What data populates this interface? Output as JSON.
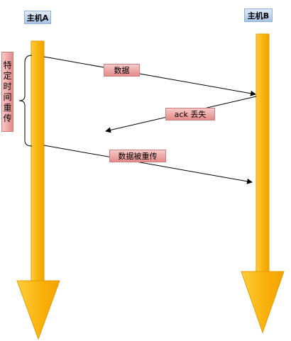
{
  "hosts": {
    "a": "主机A",
    "b": "主机B"
  },
  "messages": {
    "data": "数据",
    "ack_lost": "ack 丢失",
    "retransmit": "数据被重传"
  },
  "timeout_label": "特定时间重传",
  "colors": {
    "lifeline": "#fbb40f",
    "lifeline_edge": "#e49a00",
    "host_label": "#b8cfee",
    "message_label": "#ec9a9a",
    "arrow": "#000000"
  }
}
